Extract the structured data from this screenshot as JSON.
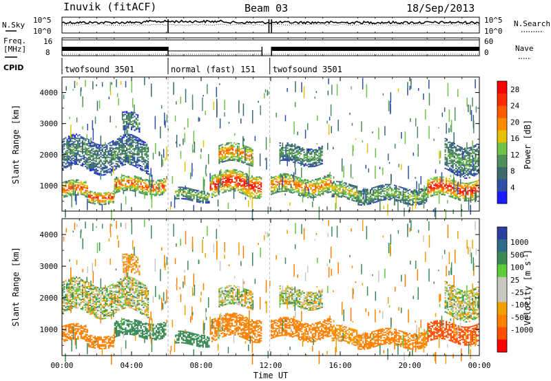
{
  "header": {
    "station": "Inuvik (fitACF)",
    "beam": "Beam 03",
    "date": "18/Sep/2013"
  },
  "noise_panel": {
    "left_label": "N.Sky",
    "right_label": "N.Search",
    "left_ticks": [
      "10^5",
      "10^0"
    ],
    "right_ticks": [
      "10^5",
      "10^0"
    ]
  },
  "freq_panel": {
    "left_label_line1": "Freq.",
    "left_label_line2": "[MHz]",
    "right_label": "Nave",
    "left_ticks": [
      "16",
      "8"
    ],
    "right_ticks": [
      "60",
      "0"
    ]
  },
  "cpid": {
    "label": "CPID",
    "segments": [
      {
        "name": "twofsound 3501",
        "start_hour": 0,
        "end_hour": 6.1
      },
      {
        "name": "normal (fast) 151",
        "start_hour": 6.1,
        "end_hour": 11.95
      },
      {
        "name": "twofsound 3501",
        "start_hour": 11.95,
        "end_hour": 24
      }
    ]
  },
  "x_axis": {
    "title": "Time UT",
    "ticks": [
      "00:00",
      "04:00",
      "08:00",
      "12:00",
      "16:00",
      "20:00",
      "00:00"
    ]
  },
  "power_panel": {
    "ylabel": "Slant Range [km]",
    "yticks": [
      "4000",
      "3000",
      "2000",
      "1000"
    ],
    "colorbar_title": "Power [dB]",
    "colorbar_ticks": [
      "28",
      "24",
      "20",
      "16",
      "12",
      "8",
      "4"
    ],
    "colors": [
      "#1a1aff",
      "#2f4fa8",
      "#3d6b6b",
      "#4f8f5a",
      "#6fc24a",
      "#e8c000",
      "#ff8c00",
      "#ff5a00",
      "#ff2a00",
      "#ff0000"
    ]
  },
  "velocity_panel": {
    "ylabel": "Slant Range [km]",
    "yticks": [
      "4000",
      "3000",
      "2000",
      "1000"
    ],
    "colorbar_title": "Velocity [m s",
    "colorbar_title_sup": "-1",
    "colorbar_title_end": "]",
    "colorbar_ticks": [
      "1000",
      "500",
      "100",
      "25",
      "-25",
      "-100",
      "-500",
      "-1000"
    ],
    "colors": [
      "#2a3fa0",
      "#2f6a8a",
      "#3a8a55",
      "#5ecb3a",
      "#c8c8c0",
      "#c8c8c0",
      "#f0a000",
      "#ff8000",
      "#ff5000",
      "#ff0000"
    ]
  },
  "chart_data": {
    "type": "heatmap",
    "title": "Beam 03",
    "xlabel": "Time UT",
    "ylabel": "Slant Range [km]",
    "x_range_hours": [
      0,
      24
    ],
    "y_range_km": [
      180,
      4500
    ],
    "power_colorbar": {
      "label": "Power [dB]",
      "range": [
        0,
        30
      ],
      "ticks": [
        4,
        8,
        12,
        16,
        20,
        24,
        28
      ]
    },
    "velocity_colorbar": {
      "label": "Velocity [m s^-1]",
      "ticks": [
        1000,
        500,
        100,
        25,
        -25,
        -100,
        -500,
        -1000
      ]
    },
    "echo_regions": [
      {
        "t_start": 0.0,
        "t_end": 1.5,
        "range_center_km": 850,
        "range_halfwidth_km": 250,
        "power_db": 24,
        "velocity": -300
      },
      {
        "t_start": 1.5,
        "t_end": 3.0,
        "range_center_km": 650,
        "range_halfwidth_km": 200,
        "power_db": 26,
        "velocity": -300
      },
      {
        "t_start": 3.0,
        "t_end": 6.0,
        "range_center_km": 1000,
        "range_halfwidth_km": 250,
        "power_db": 24,
        "velocity": 200
      },
      {
        "t_start": 0.0,
        "t_end": 5.0,
        "range_center_km": 2000,
        "range_halfwidth_km": 500,
        "power_db": 10,
        "velocity": 10
      },
      {
        "t_start": 3.5,
        "t_end": 4.5,
        "range_center_km": 3000,
        "range_halfwidth_km": 300,
        "power_db": 10,
        "velocity": -100
      },
      {
        "t_start": 6.5,
        "t_end": 8.5,
        "range_center_km": 700,
        "range_halfwidth_km": 200,
        "power_db": 14,
        "velocity": 200
      },
      {
        "t_start": 8.5,
        "t_end": 11.5,
        "range_center_km": 1050,
        "range_halfwidth_km": 350,
        "power_db": 28,
        "velocity": -400
      },
      {
        "t_start": 9.0,
        "t_end": 11.0,
        "range_center_km": 2000,
        "range_halfwidth_km": 300,
        "power_db": 22,
        "velocity": 10
      },
      {
        "t_start": 12.0,
        "t_end": 15.5,
        "range_center_km": 1000,
        "range_halfwidth_km": 300,
        "power_db": 22,
        "velocity": -300
      },
      {
        "t_start": 12.5,
        "t_end": 15.0,
        "range_center_km": 2000,
        "range_halfwidth_km": 300,
        "power_db": 12,
        "velocity": 10
      },
      {
        "t_start": 15.5,
        "t_end": 17.0,
        "range_center_km": 800,
        "range_halfwidth_km": 250,
        "power_db": 18,
        "velocity": -100
      },
      {
        "t_start": 17.0,
        "t_end": 21.0,
        "range_center_km": 700,
        "range_halfwidth_km": 250,
        "power_db": 14,
        "velocity": -200
      },
      {
        "t_start": 21.0,
        "t_end": 24.0,
        "range_center_km": 900,
        "range_halfwidth_km": 300,
        "power_db": 28,
        "velocity": -600
      },
      {
        "t_start": 22.0,
        "t_end": 24.0,
        "range_center_km": 1900,
        "range_halfwidth_km": 500,
        "power_db": 12,
        "velocity": 10
      }
    ]
  }
}
